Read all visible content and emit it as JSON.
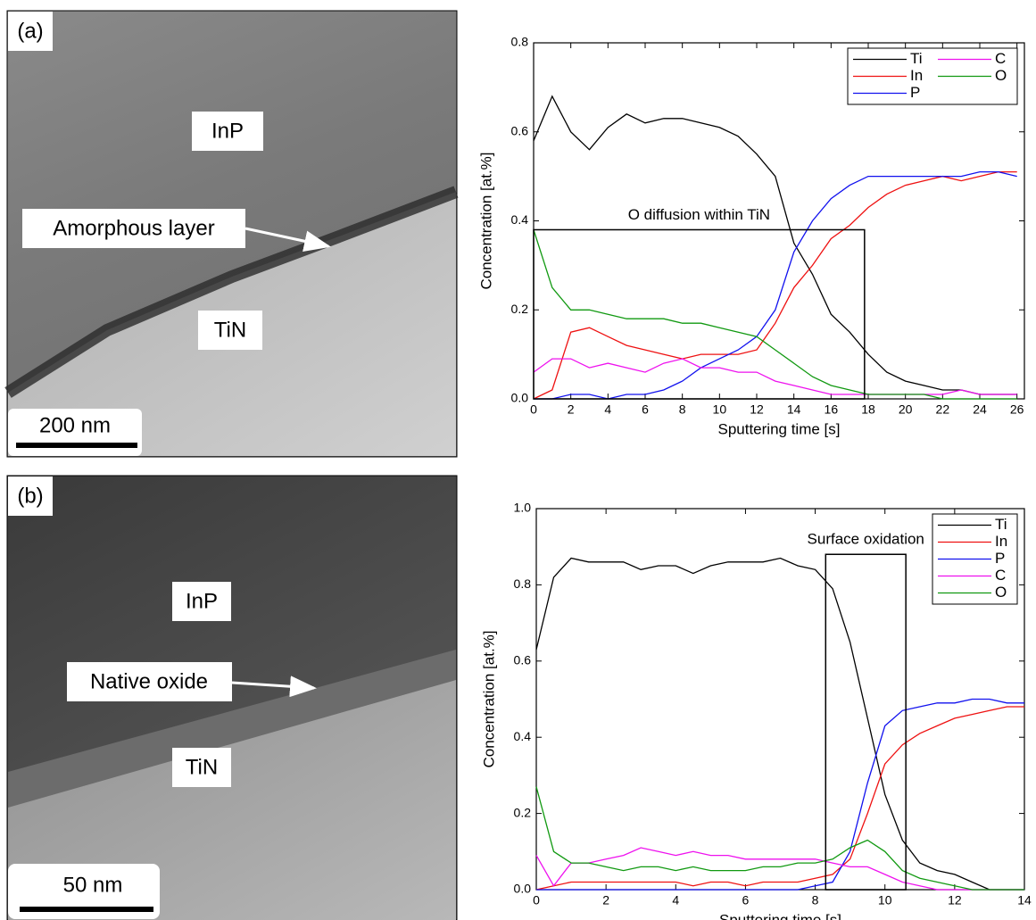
{
  "images": [
    {
      "panel": "(a)",
      "labels": [
        "InP",
        "Amorphous layer",
        "TiN"
      ],
      "scale_bar": "200 nm"
    },
    {
      "panel": "(b)",
      "labels": [
        "InP",
        "Native oxide",
        "TiN"
      ],
      "scale_bar": "50 nm"
    }
  ],
  "chart_data": [
    {
      "type": "line",
      "xlabel": "Sputtering time [s]",
      "ylabel": "Concentration [at.%]",
      "x": [
        0,
        1,
        2,
        3,
        4,
        5,
        6,
        7,
        8,
        9,
        10,
        11,
        12,
        13,
        14,
        15,
        16,
        17,
        18,
        19,
        20,
        21,
        22,
        23,
        24,
        25,
        26
      ],
      "xlim": [
        0,
        26.4
      ],
      "ylim": [
        0,
        0.8
      ],
      "xticks": [
        0,
        2,
        4,
        6,
        8,
        10,
        12,
        14,
        16,
        18,
        20,
        22,
        24,
        26
      ],
      "yticks": [
        {
          "value": 0,
          "label": "0.0"
        },
        0.2,
        0.4,
        0.6,
        0.8
      ],
      "legend": "upper right",
      "legend_columns": 2,
      "series": [
        {
          "name": "Ti",
          "color": "#000000",
          "values": [
            0.58,
            0.68,
            0.6,
            0.56,
            0.61,
            0.64,
            0.62,
            0.63,
            0.63,
            0.62,
            0.61,
            0.59,
            0.55,
            0.5,
            0.35,
            0.28,
            0.19,
            0.15,
            0.1,
            0.06,
            0.04,
            0.03,
            0.02,
            0.02,
            0.01,
            0.01,
            0.01
          ]
        },
        {
          "name": "In",
          "color": "#ee1111",
          "values": [
            0,
            0.02,
            0.15,
            0.16,
            0.14,
            0.12,
            0.11,
            0.1,
            0.09,
            0.1,
            0.1,
            0.1,
            0.11,
            0.17,
            0.25,
            0.3,
            0.36,
            0.39,
            0.43,
            0.46,
            0.48,
            0.49,
            0.5,
            0.49,
            0.5,
            0.51,
            0.51
          ]
        },
        {
          "name": "P",
          "color": "#1111ee",
          "values": [
            0,
            0,
            0.01,
            0.01,
            0,
            0.01,
            0.01,
            0.02,
            0.04,
            0.07,
            0.09,
            0.11,
            0.14,
            0.2,
            0.33,
            0.4,
            0.45,
            0.48,
            0.5,
            0.5,
            0.5,
            0.5,
            0.5,
            0.5,
            0.51,
            0.51,
            0.5
          ]
        },
        {
          "name": "C",
          "color": "#ee11ee",
          "values": [
            0.06,
            0.09,
            0.09,
            0.07,
            0.08,
            0.07,
            0.06,
            0.08,
            0.09,
            0.07,
            0.07,
            0.06,
            0.06,
            0.04,
            0.03,
            0.02,
            0.01,
            0.01,
            0.01,
            0.01,
            0.01,
            0.01,
            0.01,
            0.02,
            0.01,
            0.01,
            0.01
          ]
        },
        {
          "name": "O",
          "color": "#119911",
          "values": [
            0.38,
            0.25,
            0.2,
            0.2,
            0.19,
            0.18,
            0.18,
            0.18,
            0.17,
            0.17,
            0.16,
            0.15,
            0.14,
            0.11,
            0.08,
            0.05,
            0.03,
            0.02,
            0.01,
            0.01,
            0.01,
            0.01,
            0,
            0,
            0,
            0,
            0
          ]
        }
      ],
      "annotations": [
        {
          "text": "O diffusion within TiN",
          "x": [
            0,
            17.8
          ],
          "y": [
            0,
            0.38
          ]
        }
      ]
    },
    {
      "type": "line",
      "xlabel": "Sputtering time [s]",
      "ylabel": "Concentration [at.%]",
      "x": [
        0,
        0.5,
        1,
        1.5,
        2,
        2.5,
        3,
        3.5,
        4,
        4.5,
        5,
        5.5,
        6,
        6.5,
        7,
        7.5,
        8,
        8.5,
        9,
        9.5,
        10,
        10.5,
        11,
        11.5,
        12,
        12.5,
        13,
        13.5,
        14
      ],
      "xlim": [
        0,
        14
      ],
      "ylim": [
        0,
        1
      ],
      "xticks": [
        0,
        2,
        4,
        6,
        8,
        10,
        12,
        14
      ],
      "yticks": [
        {
          "value": 0,
          "label": "0.0"
        },
        0.2,
        0.4,
        0.6,
        0.8,
        {
          "value": 1,
          "label": "1.0"
        }
      ],
      "legend": "upper right",
      "legend_columns": 1,
      "series": [
        {
          "name": "Ti",
          "color": "#000000",
          "values": [
            0.63,
            0.82,
            0.87,
            0.86,
            0.86,
            0.86,
            0.84,
            0.85,
            0.85,
            0.83,
            0.85,
            0.86,
            0.86,
            0.86,
            0.87,
            0.85,
            0.84,
            0.79,
            0.65,
            0.45,
            0.25,
            0.13,
            0.07,
            0.05,
            0.04,
            0.02,
            0,
            0,
            0
          ]
        },
        {
          "name": "In",
          "color": "#ee1111",
          "values": [
            0,
            0.01,
            0.02,
            0.02,
            0.02,
            0.02,
            0.02,
            0.02,
            0.02,
            0.01,
            0.02,
            0.02,
            0.01,
            0.02,
            0.02,
            0.02,
            0.03,
            0.04,
            0.08,
            0.2,
            0.33,
            0.38,
            0.41,
            0.43,
            0.45,
            0.46,
            0.47,
            0.48,
            0.48
          ]
        },
        {
          "name": "P",
          "color": "#1111ee",
          "values": [
            0,
            0,
            0,
            0,
            0,
            0,
            0,
            0,
            0,
            0,
            0,
            0,
            0,
            0,
            0,
            0,
            0.01,
            0.02,
            0.1,
            0.28,
            0.43,
            0.47,
            0.48,
            0.49,
            0.49,
            0.5,
            0.5,
            0.49,
            0.49
          ]
        },
        {
          "name": "C",
          "color": "#ee11ee",
          "values": [
            0.09,
            0.01,
            0.07,
            0.07,
            0.08,
            0.09,
            0.11,
            0.1,
            0.09,
            0.1,
            0.09,
            0.09,
            0.08,
            0.08,
            0.08,
            0.08,
            0.08,
            0.07,
            0.06,
            0.06,
            0.04,
            0.02,
            0.01,
            0,
            0,
            0,
            0,
            0,
            0
          ]
        },
        {
          "name": "O",
          "color": "#119911",
          "values": [
            0.27,
            0.1,
            0.07,
            0.07,
            0.06,
            0.05,
            0.06,
            0.06,
            0.05,
            0.06,
            0.05,
            0.05,
            0.05,
            0.06,
            0.06,
            0.07,
            0.07,
            0.08,
            0.11,
            0.13,
            0.1,
            0.05,
            0.03,
            0.02,
            0.01,
            0,
            0,
            0,
            0
          ]
        }
      ],
      "annotations": [
        {
          "text": "Surface oxidation",
          "x": [
            8.3,
            10.6
          ],
          "y": [
            0,
            0.88
          ]
        }
      ]
    }
  ]
}
